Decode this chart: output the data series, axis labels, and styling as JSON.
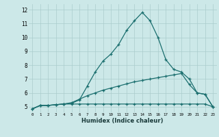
{
  "xlabel": "Humidex (Indice chaleur)",
  "bg_color": "#cce8e8",
  "grid_color": "#aacccc",
  "line_color": "#1a6e6e",
  "ylim": [
    4.6,
    12.4
  ],
  "xlim": [
    -0.5,
    23.5
  ],
  "yticks": [
    5,
    6,
    7,
    8,
    9,
    10,
    11,
    12
  ],
  "xticks": [
    0,
    1,
    2,
    3,
    4,
    5,
    6,
    7,
    8,
    9,
    10,
    11,
    12,
    13,
    14,
    15,
    16,
    17,
    18,
    19,
    20,
    21,
    22,
    23
  ],
  "line1_x": [
    0,
    1,
    2,
    3,
    4,
    5,
    6,
    7,
    8,
    9,
    10,
    11,
    12,
    13,
    14,
    15,
    16,
    17,
    18,
    19,
    20,
    21,
    22,
    23
  ],
  "line1_y": [
    4.85,
    5.1,
    5.1,
    5.15,
    5.2,
    5.25,
    5.5,
    6.5,
    7.5,
    8.3,
    8.8,
    9.5,
    10.5,
    11.2,
    11.8,
    11.2,
    10.0,
    8.4,
    7.7,
    7.5,
    7.0,
    6.0,
    5.9,
    5.0
  ],
  "line2_x": [
    0,
    1,
    2,
    3,
    4,
    5,
    6,
    7,
    8,
    9,
    10,
    11,
    12,
    13,
    14,
    15,
    16,
    17,
    18,
    19,
    20,
    21,
    22,
    23
  ],
  "line2_y": [
    4.85,
    5.1,
    5.1,
    5.15,
    5.2,
    5.3,
    5.55,
    5.8,
    6.0,
    6.2,
    6.35,
    6.5,
    6.65,
    6.8,
    6.9,
    7.0,
    7.1,
    7.2,
    7.3,
    7.4,
    6.6,
    6.0,
    5.9,
    5.0
  ],
  "line3_x": [
    0,
    1,
    2,
    3,
    4,
    5,
    6,
    7,
    8,
    9,
    10,
    11,
    12,
    13,
    14,
    15,
    16,
    17,
    18,
    19,
    20,
    21,
    22,
    23
  ],
  "line3_y": [
    4.85,
    5.1,
    5.1,
    5.15,
    5.2,
    5.2,
    5.2,
    5.2,
    5.2,
    5.2,
    5.2,
    5.2,
    5.2,
    5.2,
    5.2,
    5.2,
    5.2,
    5.2,
    5.2,
    5.2,
    5.2,
    5.2,
    5.2,
    5.0
  ]
}
